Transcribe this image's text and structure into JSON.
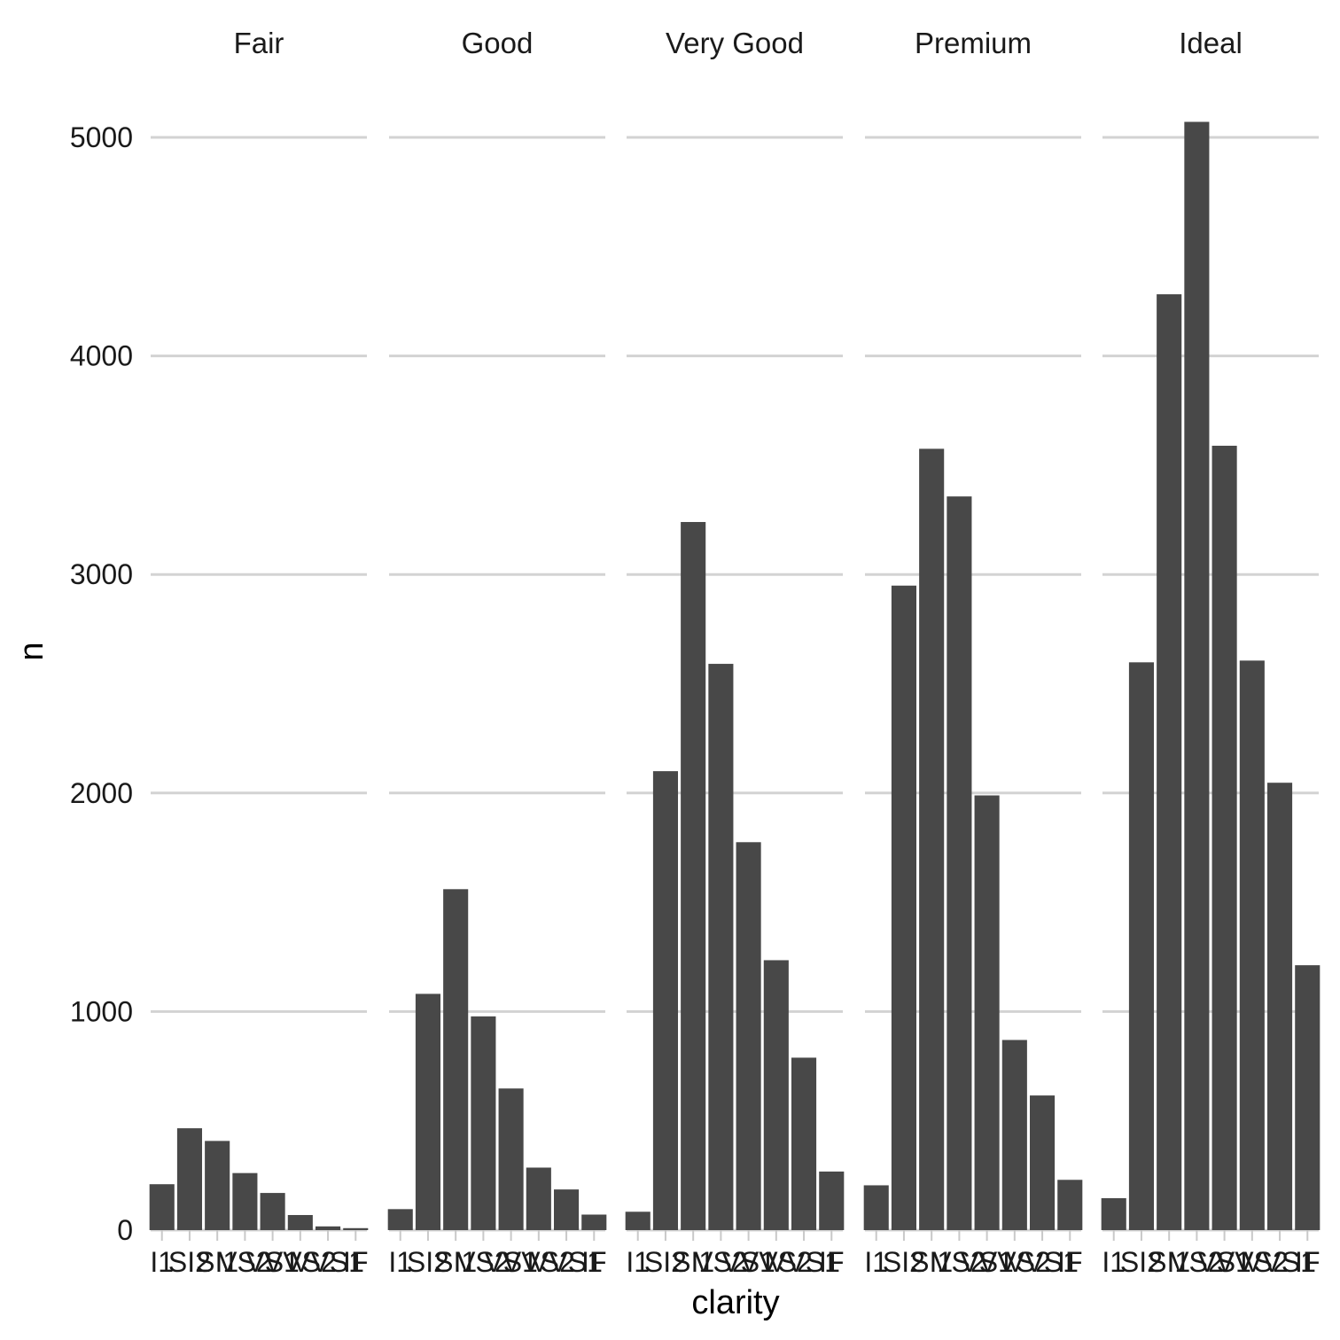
{
  "chart_data": {
    "type": "bar",
    "xlabel": "clarity",
    "ylabel": "n",
    "ylim": [
      0,
      5200
    ],
    "yticks": [
      0,
      1000,
      2000,
      3000,
      4000,
      5000
    ],
    "ytick_labels": [
      "0",
      "1000",
      "2000",
      "3000",
      "4000",
      "5000"
    ],
    "grid": "horizontal major",
    "categories": [
      "I1",
      "SI2",
      "SI1",
      "VS2",
      "VS1",
      "VVS2",
      "VVS1",
      "IF"
    ],
    "facets": [
      {
        "name": "Fair",
        "values": [
          210,
          466,
          408,
          261,
          170,
          69,
          17,
          9
        ]
      },
      {
        "name": "Good",
        "values": [
          96,
          1081,
          1560,
          978,
          648,
          286,
          186,
          71
        ]
      },
      {
        "name": "Very Good",
        "values": [
          84,
          2100,
          3240,
          2591,
          1775,
          1235,
          789,
          268
        ]
      },
      {
        "name": "Premium",
        "values": [
          205,
          2949,
          3575,
          3357,
          1989,
          870,
          616,
          230
        ]
      },
      {
        "name": "Ideal",
        "values": [
          146,
          2598,
          4282,
          5071,
          3589,
          2606,
          2047,
          1212
        ]
      }
    ],
    "bar_color": "#484848",
    "grid_color": "#d3d3d3"
  }
}
